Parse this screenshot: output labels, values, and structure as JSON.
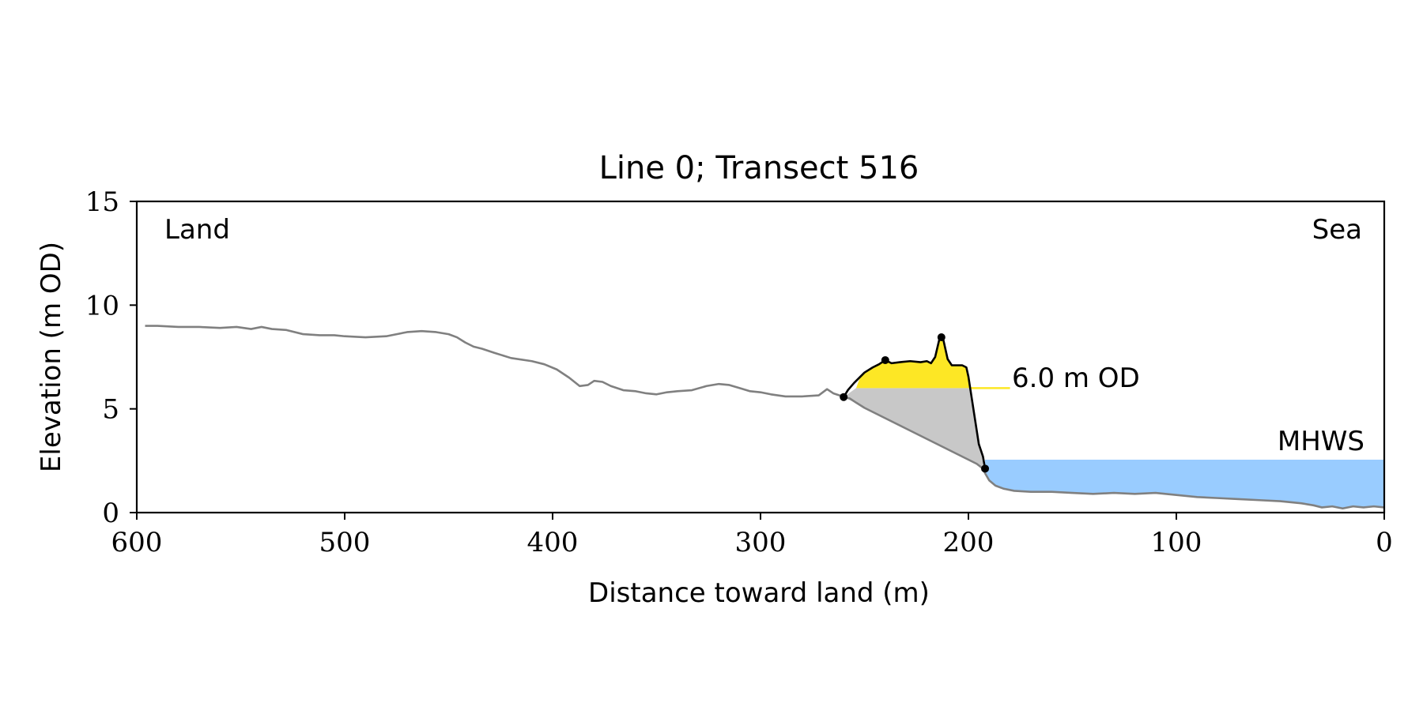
{
  "chart_data": {
    "type": "line",
    "title": "Line 0; Transect 516",
    "xlabel": "Distance toward land (m)",
    "ylabel": "Elevation (m OD)",
    "xlim": [
      600,
      0
    ],
    "ylim": [
      0,
      15
    ],
    "x_ticks": [
      600,
      500,
      400,
      300,
      200,
      100,
      0
    ],
    "y_ticks": [
      0,
      5,
      10,
      15
    ],
    "grid": false,
    "annotations": {
      "land": "Land",
      "sea": "Sea",
      "od_label": "6.0 m OD",
      "mhws_label": "MHWS"
    },
    "od_level": 6.0,
    "mhws_level": 2.55,
    "colors": {
      "profile": "#808080",
      "dune_outline": "#000000",
      "dune_fill": "#fde725",
      "od_line": "#fde725",
      "wedge_fill": "#c8c8c8",
      "mhws_fill": "#99ccff",
      "mhws_text": "#6699cc"
    },
    "profile": {
      "x": [
        596,
        590,
        580,
        570,
        560,
        552,
        545,
        540,
        535,
        528,
        520,
        512,
        505,
        500,
        490,
        480,
        470,
        463,
        456,
        450,
        446,
        442,
        438,
        434,
        428,
        420,
        410,
        404,
        398,
        392,
        387,
        383,
        380,
        376,
        372,
        366,
        360,
        355,
        350,
        345,
        340,
        333,
        326,
        320,
        315,
        310,
        305,
        300,
        295,
        288,
        280,
        272,
        268,
        265,
        262,
        260,
        257,
        254,
        250,
        240,
        230,
        220,
        210,
        200,
        196,
        193,
        192,
        190,
        187,
        183,
        178,
        170,
        160,
        150,
        140,
        130,
        120,
        110,
        100,
        90,
        80,
        70,
        60,
        50,
        40,
        34,
        30,
        25,
        20,
        15,
        10,
        5,
        0
      ],
      "y": [
        9.0,
        9.0,
        8.95,
        8.95,
        8.9,
        8.95,
        8.85,
        8.95,
        8.85,
        8.8,
        8.6,
        8.55,
        8.55,
        8.5,
        8.45,
        8.5,
        8.7,
        8.75,
        8.7,
        8.6,
        8.45,
        8.2,
        8.0,
        7.9,
        7.7,
        7.45,
        7.3,
        7.15,
        6.9,
        6.5,
        6.1,
        6.15,
        6.35,
        6.3,
        6.1,
        5.9,
        5.85,
        5.75,
        5.7,
        5.8,
        5.85,
        5.9,
        6.1,
        6.2,
        6.15,
        6.0,
        5.85,
        5.8,
        5.7,
        5.6,
        5.6,
        5.65,
        5.95,
        5.75,
        5.65,
        5.57,
        5.5,
        5.3,
        5.05,
        4.55,
        4.05,
        3.55,
        3.05,
        2.55,
        2.35,
        2.12,
        1.9,
        1.55,
        1.3,
        1.15,
        1.05,
        1.0,
        1.0,
        0.95,
        0.9,
        0.95,
        0.9,
        0.95,
        0.85,
        0.75,
        0.7,
        0.65,
        0.6,
        0.55,
        0.45,
        0.35,
        0.25,
        0.3,
        0.2,
        0.3,
        0.25,
        0.3,
        0.25
      ]
    },
    "dune_crest": {
      "x": [
        260,
        258,
        255,
        252,
        250,
        246,
        243,
        240,
        237,
        233,
        228,
        223,
        220,
        218,
        216,
        214,
        213,
        212,
        210,
        208,
        206,
        203,
        201,
        200,
        199,
        197,
        195,
        193,
        192
      ],
      "y": [
        5.57,
        5.9,
        6.25,
        6.55,
        6.75,
        7.0,
        7.15,
        7.35,
        7.2,
        7.25,
        7.3,
        7.25,
        7.3,
        7.2,
        7.5,
        8.35,
        8.45,
        8.3,
        7.4,
        7.1,
        7.1,
        7.1,
        7.0,
        6.55,
        5.9,
        4.6,
        3.3,
        2.7,
        2.12
      ]
    },
    "key_points": {
      "x": [
        260,
        240,
        213,
        192
      ],
      "y": [
        5.57,
        7.35,
        8.45,
        2.12
      ]
    }
  }
}
